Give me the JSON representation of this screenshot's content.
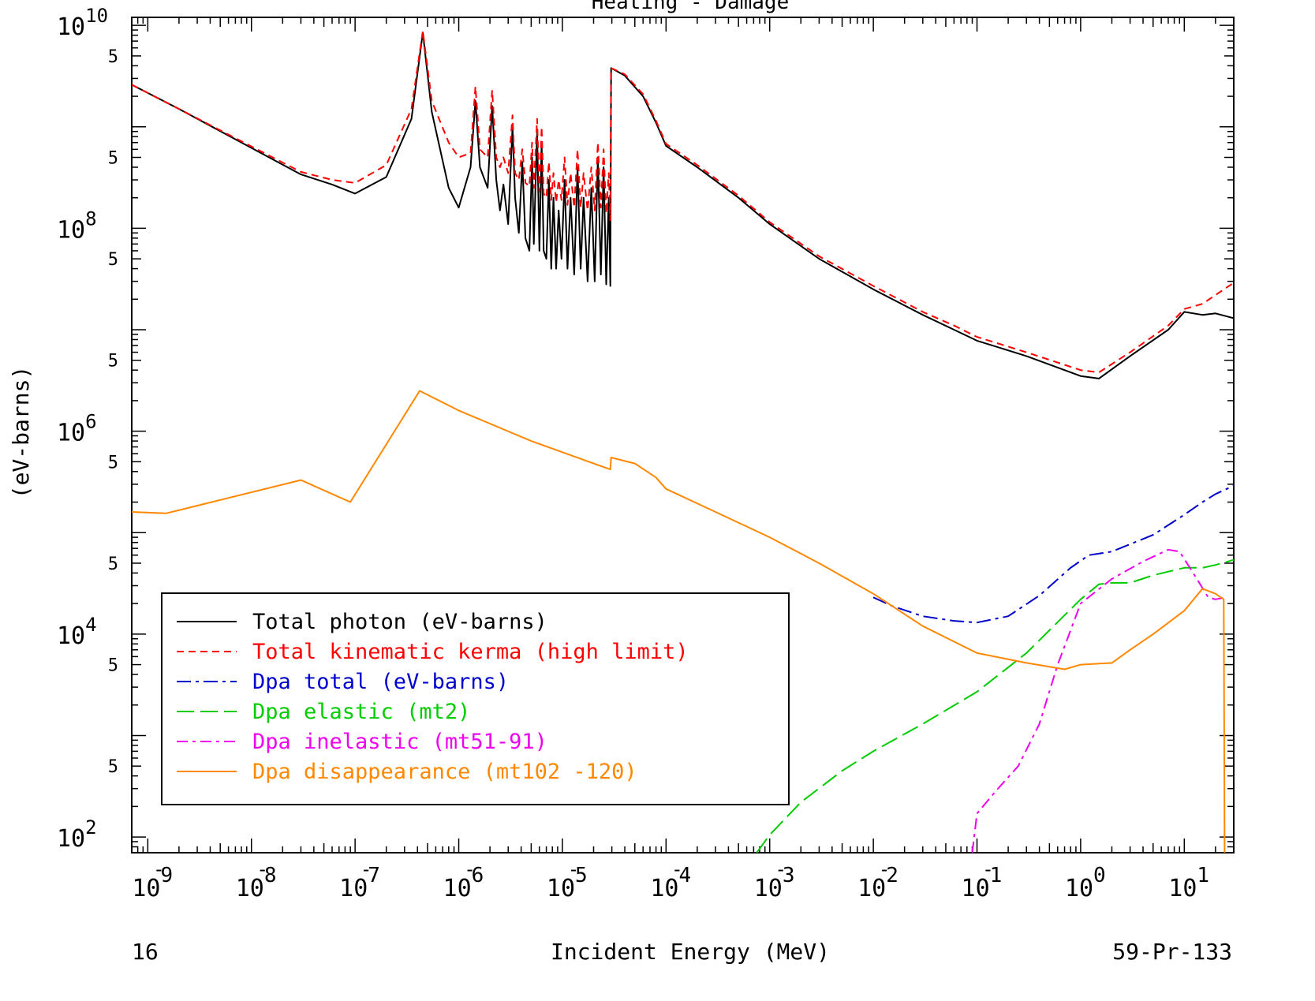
{
  "chart_data": {
    "type": "line",
    "title": "Heating - Damage",
    "xlabel": "Incident Energy (MeV)",
    "ylabel": "(eV-barns)",
    "footer_left": "16",
    "footer_right": "59-Pr-133",
    "xscale": "log",
    "yscale": "log",
    "xlim": [
      7e-10,
      30
    ],
    "ylim": [
      70,
      12000000000.0
    ],
    "x_ticks": [
      {
        "exp": "-9",
        "value": 1e-09
      },
      {
        "exp": "-8",
        "value": 1e-08
      },
      {
        "exp": "-7",
        "value": 1e-07
      },
      {
        "exp": "-6",
        "value": 1e-06
      },
      {
        "exp": "-5",
        "value": 1e-05
      },
      {
        "exp": "-4",
        "value": 0.0001
      },
      {
        "exp": "-3",
        "value": 0.001
      },
      {
        "exp": "-2",
        "value": 0.01
      },
      {
        "exp": "-1",
        "value": 0.1
      },
      {
        "exp": "0",
        "value": 1
      },
      {
        "exp": "1",
        "value": 10
      }
    ],
    "y_ticks": [
      {
        "exp": "10",
        "value": 10000000000.0
      },
      {
        "exp": "8",
        "value": 100000000.0
      },
      {
        "exp": "6",
        "value": 1000000.0
      },
      {
        "exp": "4",
        "value": 10000.0
      },
      {
        "exp": "2",
        "value": 100.0
      }
    ],
    "y_minor_label": "5",
    "y_minor_values": [
      5000000000.0,
      500000000.0,
      50000000.0,
      5000000.0,
      500000.0,
      50000.0,
      5000.0,
      500.0
    ],
    "legend_position": "lower-left",
    "series": [
      {
        "name": "Total photon (eV-barns)",
        "color": "#000000",
        "dash": "solid",
        "points": [
          [
            7e-10,
            2600000000.0
          ],
          [
            2e-09,
            1500000000.0
          ],
          [
            1e-08,
            620000000.0
          ],
          [
            3e-08,
            340000000.0
          ],
          [
            6e-08,
            270000000.0
          ],
          [
            1e-07,
            220000000.0
          ],
          [
            2e-07,
            320000000.0
          ],
          [
            3.5e-07,
            1200000000.0
          ],
          [
            4.5e-07,
            8500000000.0
          ],
          [
            5.5e-07,
            1400000000.0
          ],
          [
            8e-07,
            250000000.0
          ],
          [
            1e-06,
            160000000.0
          ],
          [
            1.3e-06,
            400000000.0
          ],
          [
            1.45e-06,
            1800000000.0
          ],
          [
            1.6e-06,
            400000000.0
          ],
          [
            1.9e-06,
            250000000.0
          ],
          [
            2.1e-06,
            1600000000.0
          ],
          [
            2.3e-06,
            300000000.0
          ],
          [
            2.5e-06,
            150000000.0
          ],
          [
            2.7e-06,
            270000000.0
          ],
          [
            3e-06,
            110000000.0
          ],
          [
            3.3e-06,
            1000000000.0
          ],
          [
            3.5e-06,
            200000000.0
          ],
          [
            3.8e-06,
            90000000.0
          ],
          [
            4.1e-06,
            450000000.0
          ],
          [
            4.4e-06,
            80000000.0
          ],
          [
            4.8e-06,
            60000000.0
          ],
          [
            5.1e-06,
            500000000.0
          ],
          [
            5.3e-06,
            70000000.0
          ],
          [
            5.7e-06,
            900000000.0
          ],
          [
            6e-06,
            60000000.0
          ],
          [
            6.3e-06,
            700000000.0
          ],
          [
            6.6e-06,
            60000000.0
          ],
          [
            7e-06,
            50000000.0
          ],
          [
            7.4e-06,
            300000000.0
          ],
          [
            7.8e-06,
            40000000.0
          ],
          [
            8.2e-06,
            200000000.0
          ],
          [
            8.7e-06,
            40000000.0
          ],
          [
            9.2e-06,
            150000000.0
          ],
          [
            9.8e-06,
            50000000.0
          ],
          [
            1.05e-05,
            300000000.0
          ],
          [
            1.12e-05,
            40000000.0
          ],
          [
            1.2e-05,
            200000000.0
          ],
          [
            1.3e-05,
            35000000.0
          ],
          [
            1.4e-05,
            400000000.0
          ],
          [
            1.5e-05,
            40000000.0
          ],
          [
            1.6e-05,
            200000000.0
          ],
          [
            1.75e-05,
            30000000.0
          ],
          [
            1.9e-05,
            250000000.0
          ],
          [
            2.05e-05,
            30000000.0
          ],
          [
            2.2e-05,
            500000000.0
          ],
          [
            2.35e-05,
            35000000.0
          ],
          [
            2.5e-05,
            400000000.0
          ],
          [
            2.65e-05,
            28000000.0
          ],
          [
            2.8e-05,
            200000000.0
          ],
          [
            2.9e-05,
            27000000.0
          ],
          [
            2.95e-05,
            3800000000.0
          ],
          [
            4e-05,
            3200000000.0
          ],
          [
            6e-05,
            2000000000.0
          ],
          [
            8e-05,
            1100000000.0
          ],
          [
            0.0001,
            650000000.0
          ],
          [
            0.0002,
            400000000.0
          ],
          [
            0.0005,
            200000000.0
          ],
          [
            0.001,
            110000000.0
          ],
          [
            0.003,
            50000000.0
          ],
          [
            0.01,
            25000000.0
          ],
          [
            0.03,
            14000000.0
          ],
          [
            0.06,
            10000000.0
          ],
          [
            0.1,
            7800000.0
          ],
          [
            0.3,
            5500000.0
          ],
          [
            1,
            3500000.0
          ],
          [
            1.5,
            3300000.0
          ],
          [
            3,
            5500000.0
          ],
          [
            7,
            10000000.0
          ],
          [
            10,
            15000000.0
          ],
          [
            15,
            14000000.0
          ],
          [
            20,
            14500000.0
          ],
          [
            30,
            13000000.0
          ]
        ]
      },
      {
        "name": "Total kinematic kerma (high limit)",
        "color": "#ff0000",
        "dash": "9,6",
        "points": [
          [
            7e-10,
            2600000000.0
          ],
          [
            2e-09,
            1500000000.0
          ],
          [
            1e-08,
            640000000.0
          ],
          [
            3e-08,
            360000000.0
          ],
          [
            6e-08,
            300000000.0
          ],
          [
            1e-07,
            280000000.0
          ],
          [
            2e-07,
            420000000.0
          ],
          [
            3.5e-07,
            1500000000.0
          ],
          [
            4.5e-07,
            8800000000.0
          ],
          [
            5.5e-07,
            1800000000.0
          ],
          [
            8e-07,
            700000000.0
          ],
          [
            1e-06,
            500000000.0
          ],
          [
            1.3e-06,
            550000000.0
          ],
          [
            1.45e-06,
            2500000000.0
          ],
          [
            1.6e-06,
            600000000.0
          ],
          [
            1.9e-06,
            500000000.0
          ],
          [
            2.1e-06,
            2300000000.0
          ],
          [
            2.3e-06,
            500000000.0
          ],
          [
            2.5e-06,
            400000000.0
          ],
          [
            2.7e-06,
            500000000.0
          ],
          [
            3e-06,
            350000000.0
          ],
          [
            3.3e-06,
            1300000000.0
          ],
          [
            3.5e-06,
            350000000.0
          ],
          [
            3.8e-06,
            300000000.0
          ],
          [
            4.1e-06,
            600000000.0
          ],
          [
            4.4e-06,
            280000000.0
          ],
          [
            4.8e-06,
            260000000.0
          ],
          [
            5.1e-06,
            700000000.0
          ],
          [
            5.3e-06,
            250000000.0
          ],
          [
            5.7e-06,
            1200000000.0
          ],
          [
            6e-06,
            230000000.0
          ],
          [
            6.3e-06,
            1000000000.0
          ],
          [
            6.6e-06,
            220000000.0
          ],
          [
            7e-06,
            200000000.0
          ],
          [
            7.4e-06,
            450000000.0
          ],
          [
            7.8e-06,
            190000000.0
          ],
          [
            8.2e-06,
            350000000.0
          ],
          [
            8.7e-06,
            180000000.0
          ],
          [
            9.2e-06,
            300000000.0
          ],
          [
            9.8e-06,
            190000000.0
          ],
          [
            1.05e-05,
            500000000.0
          ],
          [
            1.12e-05,
            170000000.0
          ],
          [
            1.2e-05,
            350000000.0
          ],
          [
            1.3e-05,
            160000000.0
          ],
          [
            1.4e-05,
            600000000.0
          ],
          [
            1.5e-05,
            160000000.0
          ],
          [
            1.6e-05,
            350000000.0
          ],
          [
            1.75e-05,
            150000000.0
          ],
          [
            1.9e-05,
            400000000.0
          ],
          [
            2.05e-05,
            150000000.0
          ],
          [
            2.2e-05,
            700000000.0
          ],
          [
            2.35e-05,
            160000000.0
          ],
          [
            2.5e-05,
            600000000.0
          ],
          [
            2.65e-05,
            140000000.0
          ],
          [
            2.8e-05,
            350000000.0
          ],
          [
            2.9e-05,
            120000000.0
          ],
          [
            2.95e-05,
            3800000000.0
          ],
          [
            4e-05,
            3300000000.0
          ],
          [
            6e-05,
            2100000000.0
          ],
          [
            8e-05,
            1150000000.0
          ],
          [
            0.0001,
            680000000.0
          ],
          [
            0.0002,
            420000000.0
          ],
          [
            0.0005,
            210000000.0
          ],
          [
            0.001,
            115000000.0
          ],
          [
            0.003,
            53000000.0
          ],
          [
            0.01,
            27000000.0
          ],
          [
            0.03,
            15000000.0
          ],
          [
            0.06,
            11000000.0
          ],
          [
            0.1,
            8500000.0
          ],
          [
            0.3,
            6000000.0
          ],
          [
            1,
            4000000.0
          ],
          [
            1.5,
            3800000.0
          ],
          [
            3,
            6000000.0
          ],
          [
            7,
            11000000.0
          ],
          [
            10,
            16000000.0
          ],
          [
            15,
            18000000.0
          ],
          [
            20,
            22000000.0
          ],
          [
            30,
            29000000.0
          ]
        ]
      },
      {
        "name": "Dpa total (eV-barns)",
        "color": "#0000cc",
        "dash": "18,6,4,6",
        "points": [
          [
            0.01,
            23000.0
          ],
          [
            0.015,
            19000.0
          ],
          [
            0.03,
            15000.0
          ],
          [
            0.06,
            13500.0
          ],
          [
            0.1,
            13000.0
          ],
          [
            0.2,
            15000.0
          ],
          [
            0.4,
            24000.0
          ],
          [
            0.8,
            45000.0
          ],
          [
            1.2,
            60000.0
          ],
          [
            2,
            65000.0
          ],
          [
            5,
            95000.0
          ],
          [
            10,
            150000.0
          ],
          [
            15,
            200000.0
          ],
          [
            20,
            240000.0
          ],
          [
            30,
            290000.0
          ]
        ]
      },
      {
        "name": "Dpa elastic (mt2)",
        "color": "#00cc00",
        "dash": "22,8",
        "points": [
          [
            0.00075,
            70
          ],
          [
            0.001,
            105
          ],
          [
            0.002,
            220
          ],
          [
            0.005,
            450
          ],
          [
            0.01,
            700
          ],
          [
            0.03,
            1300.0
          ],
          [
            0.1,
            2700.0
          ],
          [
            0.3,
            6500.0
          ],
          [
            1,
            22000.0
          ],
          [
            1.5,
            31000.0
          ],
          [
            2,
            32000.0
          ],
          [
            3,
            32000.0
          ],
          [
            5,
            38000.0
          ],
          [
            10,
            45000.0
          ],
          [
            15,
            45000.0
          ],
          [
            20,
            48000.0
          ],
          [
            30,
            54000.0
          ]
        ]
      },
      {
        "name": "Dpa inelastic (mt51-91)",
        "color": "#ee00ee",
        "dash": "14,6,4,6",
        "points": [
          [
            0.09,
            70
          ],
          [
            0.1,
            170
          ],
          [
            0.15,
            280
          ],
          [
            0.25,
            500
          ],
          [
            0.4,
            1300.0
          ],
          [
            0.6,
            5000.0
          ],
          [
            1,
            20000.0
          ],
          [
            2,
            35000.0
          ],
          [
            4,
            52000.0
          ],
          [
            7,
            68000.0
          ],
          [
            9,
            65000.0
          ],
          [
            13,
            36000.0
          ],
          [
            17,
            23000.0
          ],
          [
            20,
            22000.0
          ],
          [
            25,
            23000.0
          ]
        ]
      },
      {
        "name": "Dpa disappearance (mt102 -120)",
        "color": "#ff8800",
        "dash": "solid",
        "points": [
          [
            7e-10,
            160000.0
          ],
          [
            1.5e-09,
            155000.0
          ],
          [
            5e-09,
            210000.0
          ],
          [
            3e-08,
            330000.0
          ],
          [
            9e-08,
            200000.0
          ],
          [
            4.2e-07,
            2500000.0
          ],
          [
            1e-06,
            1600000.0
          ],
          [
            5e-06,
            800000.0
          ],
          [
            2.9e-05,
            420000.0
          ],
          [
            2.95e-05,
            550000.0
          ],
          [
            5e-05,
            480000.0
          ],
          [
            8e-05,
            350000.0
          ],
          [
            0.0001,
            270000.0
          ],
          [
            0.0003,
            160000.0
          ],
          [
            0.001,
            90000.0
          ],
          [
            0.003,
            50000.0
          ],
          [
            0.01,
            25000.0
          ],
          [
            0.03,
            12000.0
          ],
          [
            0.1,
            6500.0
          ],
          [
            0.3,
            5200.0
          ],
          [
            0.7,
            4500.0
          ],
          [
            1,
            5000.0
          ],
          [
            2,
            5200.0
          ],
          [
            3,
            7000.0
          ],
          [
            5,
            10000.0
          ],
          [
            10,
            17000.0
          ],
          [
            15,
            28000.0
          ],
          [
            20,
            25000.0
          ],
          [
            24,
            22000.0
          ],
          [
            24.5,
            70
          ]
        ]
      }
    ]
  }
}
